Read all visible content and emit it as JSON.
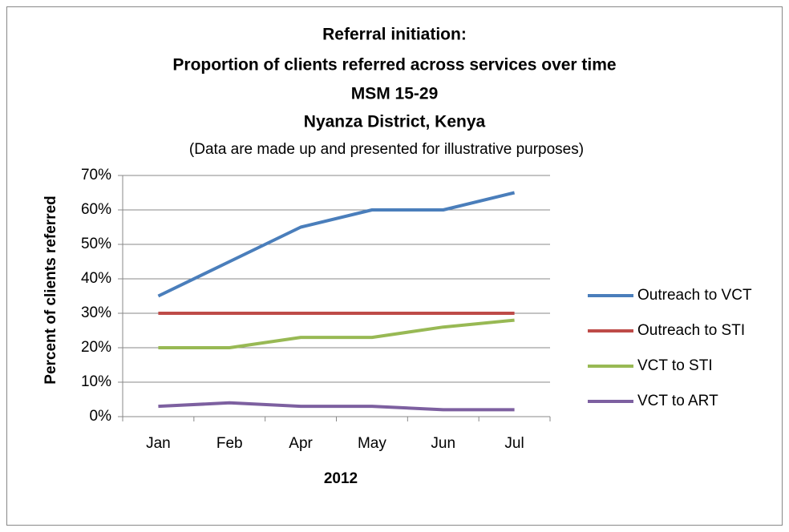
{
  "chart_data": {
    "type": "line",
    "title": [
      "Referral initiation:",
      "Proportion of clients referred across services over time",
      "MSM 15-29",
      "Nyanza District, Kenya"
    ],
    "subtitle": "(Data are made up and presented for illustrative purposes)",
    "x_label": "2012",
    "y_label": "Percent of clients referred",
    "categories": [
      "Jan",
      "Feb",
      "Apr",
      "May",
      "Jun",
      "Jul"
    ],
    "series": [
      {
        "name": "Outreach to VCT",
        "color": "#4a7ebb",
        "values": [
          35,
          45,
          55,
          60,
          60,
          65
        ]
      },
      {
        "name": "Outreach to STI",
        "color": "#be4b48",
        "values": [
          30,
          30,
          30,
          30,
          30,
          30
        ]
      },
      {
        "name": "VCT to STI",
        "color": "#98b954",
        "values": [
          20,
          20,
          23,
          23,
          26,
          28
        ]
      },
      {
        "name": "VCT to ART",
        "color": "#7d60a0",
        "values": [
          3,
          4,
          3,
          3,
          2,
          2
        ]
      }
    ],
    "ylim": [
      0,
      70
    ],
    "yticks": [
      {
        "value": 0,
        "label": "0%"
      },
      {
        "value": 10,
        "label": "10%"
      },
      {
        "value": 20,
        "label": "20%"
      },
      {
        "value": 30,
        "label": "30%"
      },
      {
        "value": 40,
        "label": "40%"
      },
      {
        "value": 50,
        "label": "50%"
      },
      {
        "value": 60,
        "label": "60%"
      },
      {
        "value": 70,
        "label": "70%"
      }
    ],
    "grid": true,
    "legend": "right"
  }
}
